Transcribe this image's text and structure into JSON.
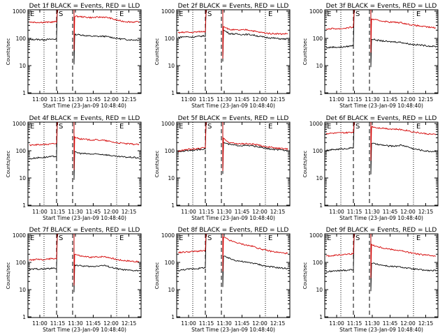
{
  "chart_data": [
    {
      "type": "line",
      "title": "Det 1f BLACK = Events, RED = LLD",
      "xlabel": "Start Time (23-Jan-09 10:48:40)",
      "ylabel": "Counts/sec",
      "yscale": "log",
      "ylim": [
        1,
        1000
      ],
      "x_ticks": [
        "11:00",
        "11:15",
        "11:30",
        "11:45",
        "12:00",
        "12:15"
      ],
      "y_ticks": [
        "1",
        "10",
        "100",
        "1000"
      ],
      "markers": [
        "E",
        "S",
        "E"
      ],
      "series": [
        {
          "color": "#000000",
          "pre": [
            90,
            92,
            90,
            92,
            95
          ],
          "post": [
            140,
            135,
            125,
            120,
            118,
            120,
            112,
            102,
            95,
            90,
            88,
            88
          ]
        },
        {
          "color": "#d40000",
          "pre": [
            400,
            390,
            390,
            395,
            410
          ],
          "post": [
            650,
            630,
            600,
            580,
            600,
            610,
            560,
            480,
            430,
            410,
            400,
            400
          ]
        }
      ]
    },
    {
      "type": "line",
      "title": "Det 2f BLACK = Events, RED = LLD",
      "xlabel": "Start Time (23-Jan-09 10:48:40)",
      "ylabel": "Counts/sec",
      "yscale": "log",
      "ylim": [
        1,
        1000
      ],
      "x_ticks": [
        "11:00",
        "11:15",
        "11:30",
        "11:45",
        "12:00",
        "12:15"
      ],
      "y_ticks": [
        "1",
        "10",
        "100",
        "1000"
      ],
      "markers": [
        "E",
        "S",
        "E"
      ],
      "series": [
        {
          "color": "#000000",
          "pre": [
            110,
            115,
            112,
            118,
            125
          ],
          "post": [
            200,
            150,
            145,
            140,
            140,
            135,
            120,
            110,
            105,
            100,
            95,
            95
          ]
        },
        {
          "color": "#d40000",
          "pre": [
            160,
            170,
            165,
            175,
            180
          ],
          "post": [
            280,
            210,
            205,
            200,
            210,
            190,
            170,
            160,
            150,
            150,
            145,
            150
          ]
        }
      ]
    },
    {
      "type": "line",
      "title": "Det 3f BLACK = Events, RED = LLD",
      "xlabel": "Start Time (23-Jan-09 10:48:40)",
      "ylabel": "Counts/sec",
      "yscale": "log",
      "ylim": [
        1,
        1000
      ],
      "x_ticks": [
        "11:00",
        "11:15",
        "11:30",
        "11:45",
        "12:00",
        "12:15"
      ],
      "y_ticks": [
        "1",
        "10",
        "100",
        "1000"
      ],
      "markers": [
        "E",
        "S",
        "E"
      ],
      "series": [
        {
          "color": "#000000",
          "pre": [
            45,
            48,
            47,
            50,
            55
          ],
          "post": [
            95,
            85,
            80,
            75,
            75,
            72,
            65,
            60,
            58,
            55,
            52,
            50
          ]
        },
        {
          "color": "#d40000",
          "pre": [
            220,
            230,
            225,
            240,
            260
          ],
          "post": [
            520,
            460,
            430,
            400,
            390,
            380,
            340,
            310,
            290,
            270,
            255,
            245
          ]
        }
      ]
    },
    {
      "type": "line",
      "title": "Det 4f BLACK = Events, RED = LLD",
      "xlabel": "Start Time (23-Jan-09 10:48:40)",
      "ylabel": "Counts/sec",
      "yscale": "log",
      "ylim": [
        1,
        1000
      ],
      "x_ticks": [
        "11:00",
        "11:15",
        "11:30",
        "11:45",
        "12:00",
        "12:15"
      ],
      "y_ticks": [
        "1",
        "10",
        "100",
        "1000"
      ],
      "markers": [
        "E",
        "S",
        "E"
      ],
      "series": [
        {
          "color": "#000000",
          "pre": [
            50,
            55,
            57,
            60,
            63
          ],
          "post": [
            90,
            80,
            78,
            75,
            75,
            73,
            68,
            62,
            60,
            58,
            57,
            55
          ]
        },
        {
          "color": "#d40000",
          "pre": [
            160,
            165,
            170,
            175,
            185
          ],
          "post": [
            320,
            270,
            260,
            250,
            250,
            240,
            220,
            200,
            190,
            180,
            175,
            170
          ]
        }
      ]
    },
    {
      "type": "line",
      "title": "Det 5f BLACK = Events, RED = LLD",
      "xlabel": "Start Time (23-Jan-09 10:48:40)",
      "ylabel": "Counts/sec",
      "yscale": "log",
      "ylim": [
        1,
        1000
      ],
      "x_ticks": [
        "11:00",
        "11:15",
        "11:30",
        "11:45",
        "12:00",
        "12:15"
      ],
      "y_ticks": [
        "1",
        "10",
        "100",
        "1000"
      ],
      "markers": [
        "E",
        "S",
        "E"
      ],
      "series": [
        {
          "color": "#000000",
          "pre": [
            90,
            100,
            105,
            110,
            120
          ],
          "post": [
            200,
            170,
            160,
            155,
            155,
            150,
            140,
            125,
            115,
            110,
            105,
            100
          ]
        },
        {
          "color": "#d40000",
          "pre": [
            100,
            110,
            115,
            120,
            130
          ],
          "post": [
            280,
            200,
            185,
            180,
            180,
            175,
            160,
            145,
            135,
            125,
            120,
            115
          ]
        }
      ]
    },
    {
      "type": "line",
      "title": "Det 6f BLACK = Events, RED = LLD",
      "xlabel": "Start Time (23-Jan-09 10:48:40)",
      "ylabel": "Counts/sec",
      "yscale": "log",
      "ylim": [
        1,
        1000
      ],
      "x_ticks": [
        "11:00",
        "11:15",
        "11:30",
        "11:45",
        "12:00",
        "12:15"
      ],
      "y_ticks": [
        "1",
        "10",
        "100",
        "1000"
      ],
      "markers": [
        "E",
        "S",
        "E"
      ],
      "series": [
        {
          "color": "#000000",
          "pre": [
            100,
            110,
            115,
            120,
            130
          ],
          "post": [
            190,
            170,
            160,
            150,
            150,
            160,
            145,
            120,
            110,
            100,
            95,
            95
          ]
        },
        {
          "color": "#d40000",
          "pre": [
            430,
            440,
            450,
            460,
            480
          ],
          "post": [
            780,
            700,
            680,
            640,
            620,
            600,
            560,
            500,
            460,
            430,
            410,
            390
          ]
        }
      ]
    },
    {
      "type": "line",
      "title": "Det 7f BLACK = Events, RED = LLD",
      "xlabel": "Start Time (23-Jan-09 10:48:40)",
      "ylabel": "Counts/sec",
      "yscale": "log",
      "ylim": [
        1,
        1000
      ],
      "x_ticks": [
        "11:00",
        "11:15",
        "11:30",
        "11:45",
        "12:00",
        "12:15"
      ],
      "y_ticks": [
        "1",
        "10",
        "100",
        "1000"
      ],
      "markers": [
        "E",
        "S",
        "E"
      ],
      "series": [
        {
          "color": "#000000",
          "pre": [
            55,
            58,
            57,
            60,
            62
          ],
          "post": [
            80,
            75,
            72,
            70,
            75,
            78,
            68,
            60,
            55,
            52,
            50,
            50
          ]
        },
        {
          "color": "#d40000",
          "pre": [
            120,
            130,
            125,
            135,
            140
          ],
          "post": [
            200,
            170,
            160,
            155,
            160,
            165,
            150,
            130,
            120,
            115,
            110,
            105
          ]
        }
      ]
    },
    {
      "type": "line",
      "title": "Det 8f BLACK = Events, RED = LLD",
      "xlabel": "Start Time (23-Jan-09 10:48:40)",
      "ylabel": "Counts/sec",
      "yscale": "log",
      "ylim": [
        1,
        1000
      ],
      "x_ticks": [
        "11:00",
        "11:15",
        "11:30",
        "11:45",
        "12:00",
        "12:15"
      ],
      "y_ticks": [
        "1",
        "10",
        "100",
        "1000"
      ],
      "markers": [
        "E",
        "S",
        "E"
      ],
      "series": [
        {
          "color": "#000000",
          "pre": [
            50,
            55,
            58,
            60,
            65
          ],
          "post": [
            170,
            140,
            120,
            110,
            100,
            95,
            85,
            75,
            70,
            65,
            62,
            60
          ]
        },
        {
          "color": "#d40000",
          "pre": [
            230,
            240,
            250,
            260,
            270
          ],
          "post": [
            850,
            650,
            550,
            480,
            430,
            390,
            330,
            290,
            260,
            240,
            225,
            215
          ]
        }
      ]
    },
    {
      "type": "line",
      "title": "Det 9f BLACK = Events, RED = LLD",
      "xlabel": "Start Time (23-Jan-09 10:48:40)",
      "ylabel": "Counts/sec",
      "yscale": "log",
      "ylim": [
        1,
        1000
      ],
      "x_ticks": [
        "11:00",
        "11:15",
        "11:30",
        "11:45",
        "12:00",
        "12:15"
      ],
      "y_ticks": [
        "1",
        "10",
        "100",
        "1000"
      ],
      "markers": [
        "E",
        "S",
        "E"
      ],
      "series": [
        {
          "color": "#000000",
          "pre": [
            45,
            48,
            50,
            52,
            55
          ],
          "post": [
            95,
            85,
            78,
            72,
            70,
            68,
            62,
            58,
            55,
            52,
            50,
            50
          ]
        },
        {
          "color": "#d40000",
          "pre": [
            170,
            180,
            190,
            200,
            210
          ],
          "post": [
            450,
            380,
            340,
            310,
            290,
            270,
            240,
            220,
            200,
            190,
            180,
            175
          ]
        }
      ]
    }
  ]
}
